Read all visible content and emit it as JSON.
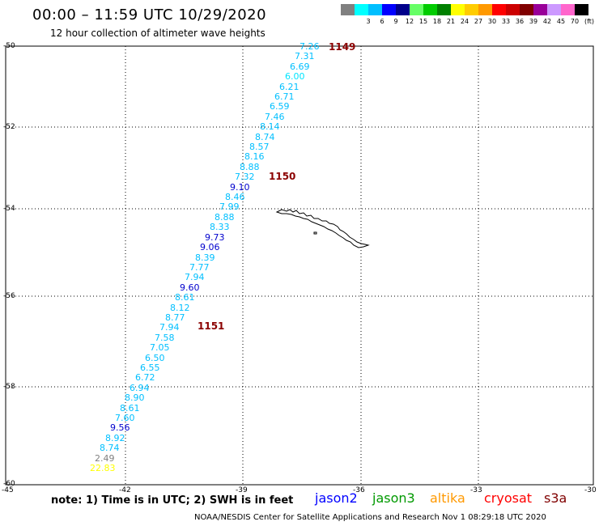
{
  "title": "00:00 – 11:59 UTC 10/29/2020",
  "subtitle": "12 hour collection of altimeter wave heights",
  "legend": {
    "unit": "(ft)",
    "swatches": [
      {
        "label": "",
        "color": "#808080"
      },
      {
        "label": "3",
        "color": "#00ffff"
      },
      {
        "label": "6",
        "color": "#00bfff"
      },
      {
        "label": "9",
        "color": "#0000ff"
      },
      {
        "label": "12",
        "color": "#00008b"
      },
      {
        "label": "15",
        "color": "#66ff66"
      },
      {
        "label": "18",
        "color": "#00cc00"
      },
      {
        "label": "21",
        "color": "#008000"
      },
      {
        "label": "24",
        "color": "#ffff00"
      },
      {
        "label": "27",
        "color": "#ffcc00"
      },
      {
        "label": "30",
        "color": "#ff9900"
      },
      {
        "label": "33",
        "color": "#ff0000"
      },
      {
        "label": "36",
        "color": "#cc0000"
      },
      {
        "label": "39",
        "color": "#800000"
      },
      {
        "label": "42",
        "color": "#990099"
      },
      {
        "label": "45",
        "color": "#cc99ff"
      },
      {
        "label": "70",
        "color": "#ff66cc"
      },
      {
        "label": "",
        "color": "#000000"
      }
    ]
  },
  "axes": {
    "lat_labels": [
      "-50",
      "-52",
      "-54",
      "-56",
      "-58",
      "-60"
    ],
    "lon_labels": [
      "-45",
      "-42",
      "-39",
      "-36",
      "-33",
      "-30"
    ]
  },
  "observations": [
    {
      "value": "7.26",
      "color": "#00bfff"
    },
    {
      "value": "7.31",
      "color": "#00bfff"
    },
    {
      "value": "6.69",
      "color": "#00bfff"
    },
    {
      "value": "6.00",
      "color": "#00e5ff"
    },
    {
      "value": "6.21",
      "color": "#00bfff"
    },
    {
      "value": "6.71",
      "color": "#00bfff"
    },
    {
      "value": "6.59",
      "color": "#00bfff"
    },
    {
      "value": "7.46",
      "color": "#00bfff"
    },
    {
      "value": "8.14",
      "color": "#00bfff"
    },
    {
      "value": "8.74",
      "color": "#00bfff"
    },
    {
      "value": "8.57",
      "color": "#00bfff"
    },
    {
      "value": "8.16",
      "color": "#00bfff"
    },
    {
      "value": "8.88",
      "color": "#00bfff"
    },
    {
      "value": "7.32",
      "color": "#00bfff"
    },
    {
      "value": "9.10",
      "color": "#0000cd"
    },
    {
      "value": "8.46",
      "color": "#00bfff"
    },
    {
      "value": "7.99",
      "color": "#00bfff"
    },
    {
      "value": "8.88",
      "color": "#00bfff"
    },
    {
      "value": "8.33",
      "color": "#00bfff"
    },
    {
      "value": "9.73",
      "color": "#0000cd"
    },
    {
      "value": "9.06",
      "color": "#0000cd"
    },
    {
      "value": "8.39",
      "color": "#00bfff"
    },
    {
      "value": "7.77",
      "color": "#00bfff"
    },
    {
      "value": "7.94",
      "color": "#00bfff"
    },
    {
      "value": "9.60",
      "color": "#0000cd"
    },
    {
      "value": "8.61",
      "color": "#00bfff"
    },
    {
      "value": "8.12",
      "color": "#00bfff"
    },
    {
      "value": "8.77",
      "color": "#00bfff"
    },
    {
      "value": "7.94",
      "color": "#00bfff"
    },
    {
      "value": "7.58",
      "color": "#00bfff"
    },
    {
      "value": "7.05",
      "color": "#00bfff"
    },
    {
      "value": "6.50",
      "color": "#00bfff"
    },
    {
      "value": "6.55",
      "color": "#00bfff"
    },
    {
      "value": "6.72",
      "color": "#00bfff"
    },
    {
      "value": "6.94",
      "color": "#00bfff"
    },
    {
      "value": "8.90",
      "color": "#00bfff"
    },
    {
      "value": "8.61",
      "color": "#00bfff"
    },
    {
      "value": "7.60",
      "color": "#00bfff"
    },
    {
      "value": "9.56",
      "color": "#0000cd"
    },
    {
      "value": "8.92",
      "color": "#00bfff"
    },
    {
      "value": "8.74",
      "color": "#00bfff"
    },
    {
      "value": "2.49",
      "color": "#808080"
    },
    {
      "value": "22.83",
      "color": "#ffff00"
    }
  ],
  "orbits": [
    "1149",
    "1150",
    "1151"
  ],
  "note": "note: 1) Time is in UTC; 2) SWH is in feet",
  "satellites": [
    {
      "name": "jason2",
      "color": "#0000ff"
    },
    {
      "name": "jason3",
      "color": "#009900"
    },
    {
      "name": "altika",
      "color": "#ff9900"
    },
    {
      "name": "cryosat",
      "color": "#ff0000"
    },
    {
      "name": "s3a",
      "color": "#800000"
    }
  ],
  "credit": "NOAA/NESDIS Center for Satellite Applications and Research   Nov  1 08:29:18 UTC 2020"
}
